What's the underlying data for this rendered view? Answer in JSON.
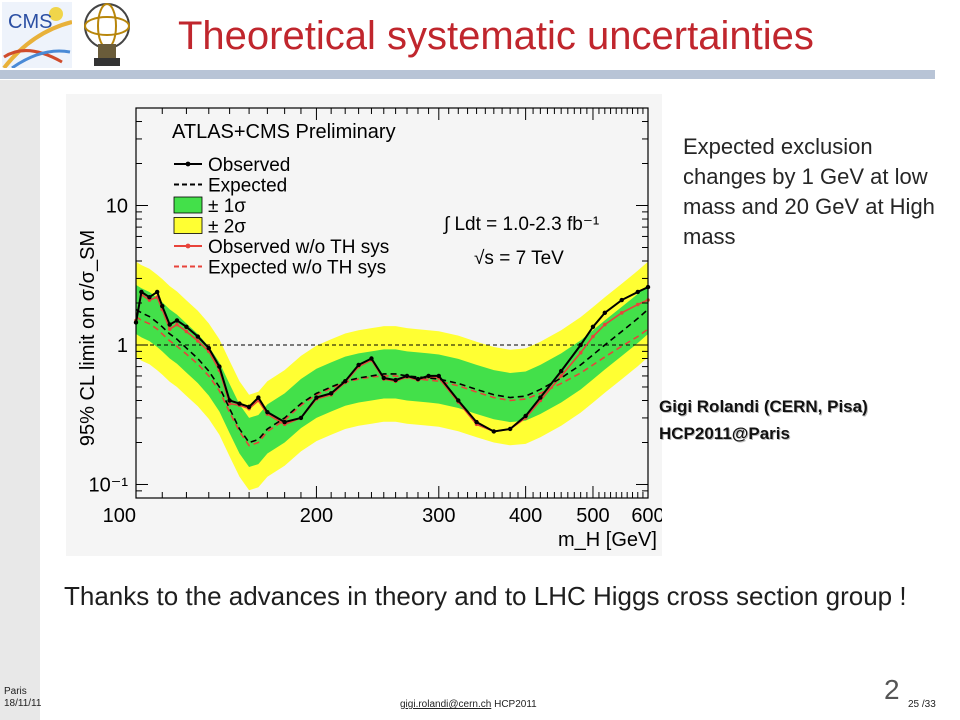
{
  "header": {
    "title": "Theoretical systematic uncertainties",
    "logo_text": "CMS"
  },
  "side_note": "Expected exclusion changes by 1 GeV at low mass and 20 GeV at High mass",
  "author": {
    "line1": "Gigi Rolandi (CERN, Pisa)",
    "line2": "HCP2011@Paris"
  },
  "caption": "Thanks to the advances in theory and to LHC Higgs cross section group !",
  "footer": {
    "place": "Paris",
    "date": "18/11/11",
    "email": "gigi.rolandi@cern.ch",
    "event": "HCP2011",
    "slide_number": "2",
    "page": "25 /33"
  },
  "colors": {
    "title": "#c0262d",
    "band_1sigma": "#43e04a",
    "band_2sigma": "#ffff33",
    "observed": "#000000",
    "observed_no_th": "#e8433a"
  },
  "chart_data": {
    "type": "line",
    "title": "ATLAS+CMS  Preliminary",
    "xlabel": "m_H [GeV]",
    "ylabel": "95% CL limit on σ/σ_SM",
    "x_scale": "log",
    "y_scale": "log",
    "xlim": [
      110,
      600
    ],
    "ylim": [
      0.08,
      50
    ],
    "x_ticks": [
      100,
      200,
      300,
      400,
      500,
      600
    ],
    "y_tick_labels": [
      "10⁻¹",
      "1",
      "10"
    ],
    "y_tick_values": [
      0.1,
      1,
      10
    ],
    "reference_line": 1,
    "legend": [
      "Observed",
      "Expected",
      "± 1σ",
      "± 2σ",
      "Observed w/o TH sys",
      "Expected w/o TH sys"
    ],
    "annotation_lumi": "∫ Ldt = 1.0-2.3 fb⁻¹",
    "annotation_energy": "√s = 7 TeV",
    "x": [
      110,
      112,
      115,
      118,
      120,
      123,
      126,
      130,
      135,
      140,
      145,
      150,
      155,
      160,
      165,
      170,
      180,
      190,
      200,
      210,
      220,
      230,
      240,
      250,
      260,
      270,
      280,
      290,
      300,
      320,
      340,
      360,
      380,
      400,
      420,
      450,
      480,
      500,
      520,
      550,
      580,
      600
    ],
    "series": [
      {
        "name": "Observed",
        "values": [
          1.45,
          2.4,
          2.2,
          2.4,
          1.9,
          1.4,
          1.5,
          1.35,
          1.15,
          0.95,
          0.7,
          0.4,
          0.38,
          0.36,
          0.42,
          0.33,
          0.28,
          0.3,
          0.42,
          0.45,
          0.55,
          0.72,
          0.8,
          0.58,
          0.56,
          0.6,
          0.57,
          0.6,
          0.6,
          0.4,
          0.28,
          0.24,
          0.25,
          0.31,
          0.42,
          0.65,
          1.0,
          1.35,
          1.7,
          2.1,
          2.4,
          2.6
        ]
      },
      {
        "name": "Expected",
        "values": [
          1.8,
          1.7,
          1.6,
          1.45,
          1.35,
          1.2,
          1.1,
          0.95,
          0.8,
          0.65,
          0.5,
          0.35,
          0.25,
          0.2,
          0.21,
          0.25,
          0.3,
          0.38,
          0.45,
          0.5,
          0.55,
          0.58,
          0.6,
          0.62,
          0.62,
          0.6,
          0.59,
          0.58,
          0.57,
          0.53,
          0.48,
          0.44,
          0.42,
          0.43,
          0.48,
          0.58,
          0.72,
          0.85,
          1.0,
          1.25,
          1.55,
          1.8
        ]
      },
      {
        "name": "Observed w/o TH sys",
        "values": [
          1.5,
          2.3,
          2.1,
          2.2,
          1.8,
          1.3,
          1.4,
          1.25,
          1.07,
          0.9,
          0.66,
          0.38,
          0.37,
          0.35,
          0.4,
          0.32,
          0.27,
          0.3,
          0.41,
          0.44,
          0.54,
          0.7,
          0.78,
          0.57,
          0.55,
          0.59,
          0.56,
          0.59,
          0.58,
          0.39,
          0.27,
          0.24,
          0.25,
          0.3,
          0.4,
          0.6,
          0.88,
          1.15,
          1.4,
          1.7,
          1.95,
          2.1
        ]
      },
      {
        "name": "Expected w/o TH sys",
        "values": [
          1.6,
          1.5,
          1.42,
          1.3,
          1.2,
          1.07,
          0.98,
          0.86,
          0.73,
          0.6,
          0.47,
          0.33,
          0.24,
          0.19,
          0.2,
          0.24,
          0.29,
          0.37,
          0.44,
          0.49,
          0.54,
          0.57,
          0.59,
          0.6,
          0.6,
          0.58,
          0.57,
          0.56,
          0.55,
          0.51,
          0.46,
          0.42,
          0.4,
          0.41,
          0.45,
          0.53,
          0.63,
          0.72,
          0.82,
          0.98,
          1.15,
          1.3
        ]
      }
    ],
    "band_1sigma_factor": 1.5,
    "band_2sigma_factor": 2.2
  }
}
